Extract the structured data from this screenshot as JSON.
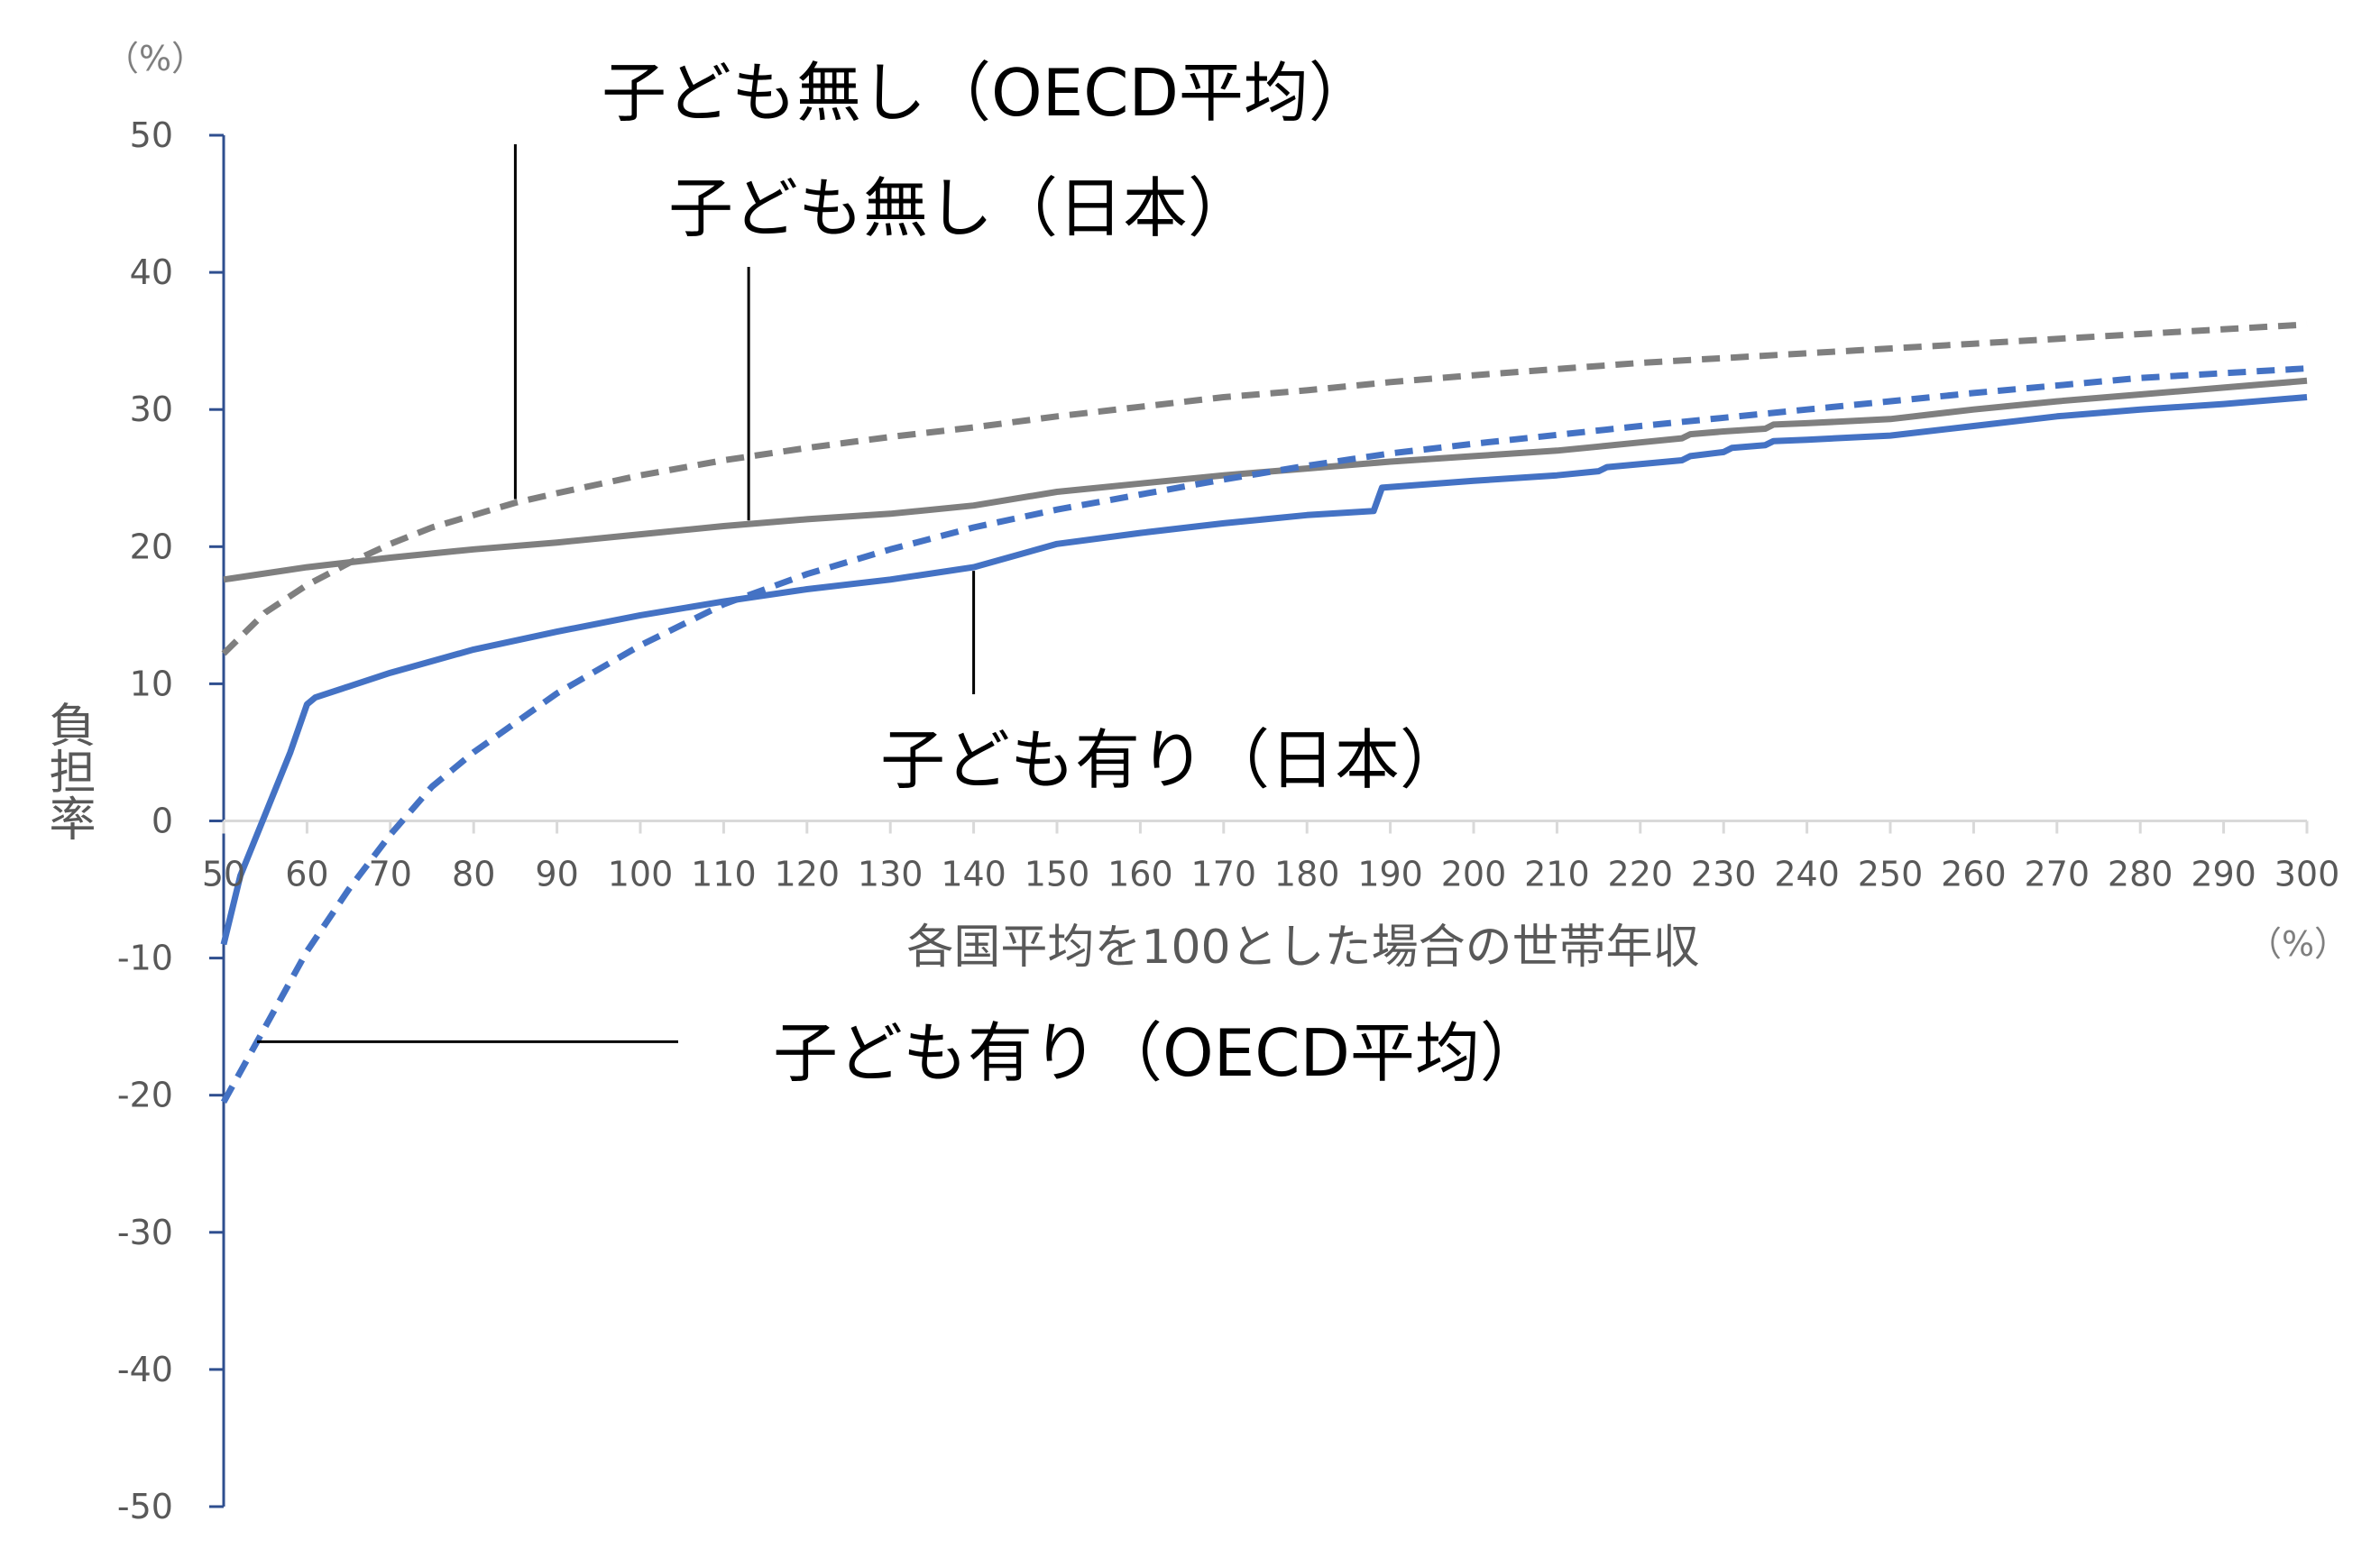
{
  "chart_data": {
    "type": "line",
    "xlabel": "各国平均を100とした場合の世帯年収",
    "ylabel": "負担率",
    "x_unit": "（%）",
    "y_unit": "（%）",
    "xlim": [
      50,
      300
    ],
    "ylim": [
      -50,
      50
    ],
    "x_ticks": [
      "50",
      "60",
      "70",
      "80",
      "90",
      "100",
      "110",
      "120",
      "130",
      "140",
      "150",
      "160",
      "170",
      "180",
      "190",
      "200",
      "210",
      "220",
      "230",
      "240",
      "250",
      "260",
      "270",
      "280",
      "290",
      "300"
    ],
    "y_ticks": [
      "50",
      "40",
      "30",
      "20",
      "10",
      "0",
      "-10",
      "-20",
      "-30",
      "-40",
      "-50"
    ],
    "grid": false,
    "legend": "none",
    "colors": {
      "gray": "#7f7f7f",
      "blue": "#4472c4",
      "axis": "#2f4f8f"
    },
    "series": [
      {
        "name": "子ども無し（OECD平均）",
        "color": "#7f7f7f",
        "style": "dashed",
        "x": [
          50,
          55,
          60,
          65,
          70,
          75,
          80,
          85,
          90,
          100,
          110,
          120,
          130,
          140,
          150,
          160,
          170,
          180,
          190,
          200,
          220,
          240,
          260,
          280,
          300
        ],
        "y": [
          12.2,
          15.2,
          17.2,
          18.8,
          20.2,
          21.4,
          22.3,
          23.2,
          23.9,
          25.2,
          26.3,
          27.2,
          28.0,
          28.7,
          29.5,
          30.2,
          30.9,
          31.4,
          32.0,
          32.5,
          33.4,
          34.1,
          34.8,
          35.5,
          36.2
        ]
      },
      {
        "name": "子ども無し（日本）",
        "color": "#7f7f7f",
        "style": "solid",
        "x": [
          50,
          60,
          70,
          80,
          90,
          100,
          110,
          120,
          130,
          140,
          150,
          160,
          170,
          180,
          190,
          200,
          210,
          215,
          220,
          225,
          226,
          230,
          235,
          236,
          240,
          250,
          260,
          270,
          280,
          290,
          300
        ],
        "y": [
          17.6,
          18.5,
          19.2,
          19.8,
          20.3,
          20.9,
          21.5,
          22.0,
          22.4,
          23.0,
          24.0,
          24.6,
          25.2,
          25.7,
          26.2,
          26.6,
          27.0,
          27.3,
          27.6,
          27.9,
          28.2,
          28.4,
          28.6,
          28.9,
          29.0,
          29.3,
          30.0,
          30.6,
          31.1,
          31.6,
          32.1
        ]
      },
      {
        "name": "子ども有り（OECD平均）",
        "color": "#4472c4",
        "style": "dashed",
        "x": [
          50,
          55,
          60,
          65,
          70,
          75,
          80,
          90,
          100,
          110,
          120,
          130,
          140,
          150,
          160,
          170,
          180,
          190,
          200,
          220,
          240,
          260,
          280,
          300
        ],
        "y": [
          -20.5,
          -15.0,
          -9.5,
          -5.0,
          -1.0,
          2.5,
          5.0,
          9.3,
          12.8,
          15.8,
          18.0,
          19.8,
          21.4,
          22.7,
          23.8,
          24.9,
          25.9,
          26.8,
          27.5,
          28.8,
          30.0,
          31.2,
          32.3,
          33.0
        ]
      },
      {
        "name": "子ども有り（日本）",
        "color": "#4472c4",
        "style": "solid",
        "x": [
          50,
          52,
          55,
          58,
          60,
          61,
          65,
          70,
          80,
          90,
          100,
          110,
          120,
          130,
          140,
          150,
          160,
          170,
          180,
          188,
          189,
          200,
          210,
          215,
          216,
          225,
          226,
          230,
          231,
          235,
          236,
          240,
          250,
          260,
          270,
          280,
          290,
          300
        ],
        "y": [
          -9.0,
          -4.0,
          0.5,
          5.0,
          8.5,
          9.0,
          9.8,
          10.8,
          12.5,
          13.8,
          15.0,
          16.0,
          16.9,
          17.6,
          18.5,
          20.2,
          21.0,
          21.7,
          22.3,
          22.6,
          24.3,
          24.8,
          25.2,
          25.5,
          25.8,
          26.3,
          26.6,
          26.9,
          27.2,
          27.4,
          27.7,
          27.8,
          28.1,
          28.8,
          29.5,
          30.0,
          30.4,
          30.9
        ]
      }
    ],
    "annotations": [
      {
        "text": "子ども無し（OECD平均）",
        "series": 0,
        "x": 85
      },
      {
        "text": "子ども無し（日本）",
        "series": 1,
        "x": 113
      },
      {
        "text": "子ども有り（日本）",
        "series": 3,
        "x": 140
      },
      {
        "text": "子ども有り（OECD平均）",
        "series": 2,
        "x": 54
      }
    ]
  }
}
